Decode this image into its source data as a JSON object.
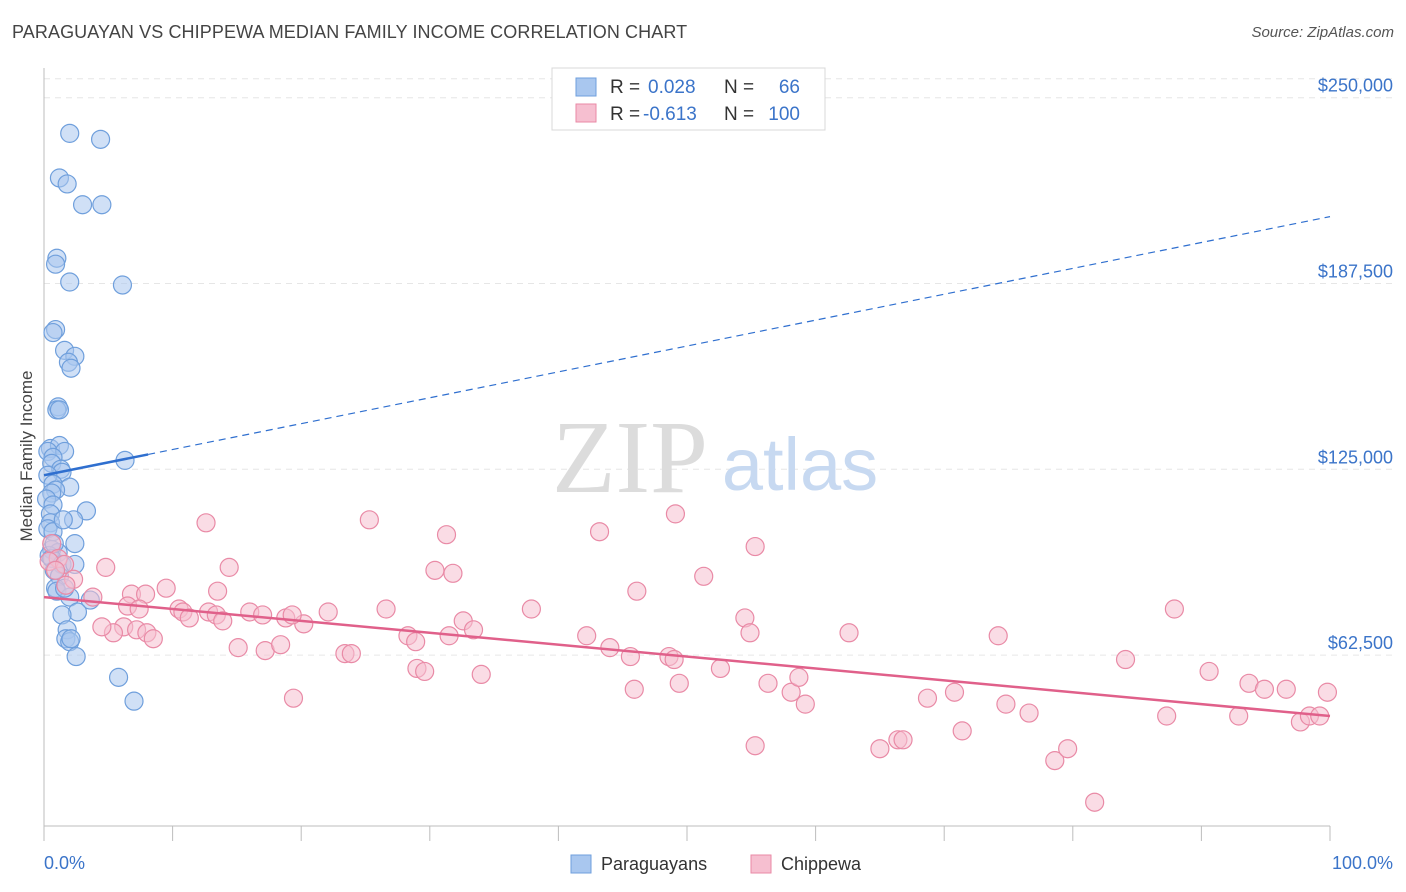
{
  "header": {
    "title": "PARAGUAYAN VS CHIPPEWA MEDIAN FAMILY INCOME CORRELATION CHART",
    "source": "Source: ZipAtlas.com"
  },
  "colors": {
    "paraguayans": "#6f9fdc",
    "paraguayans_fill": "#a9c7ef",
    "chippewa": "#e98aa6",
    "chippewa_fill": "#f6bfd0",
    "blue_trend": "#2f6fcf",
    "pink_trend": "#e0608a",
    "axis_text": "#3b74c9"
  },
  "watermark": {
    "zip": "ZIP",
    "atlas": "atlas"
  },
  "chart_data": {
    "type": "scatter",
    "title": "PARAGUAYAN VS CHIPPEWA MEDIAN FAMILY INCOME CORRELATION CHART",
    "xlabel": "",
    "ylabel": "Median Family Income",
    "xlim": [
      0,
      100
    ],
    "ylim": [
      5000,
      260000
    ],
    "x_tick_labels": [
      "0.0%",
      "100.0%"
    ],
    "y_ticks": [
      62500,
      125000,
      187500,
      250000
    ],
    "y_tick_labels": [
      "$62,500",
      "$125,000",
      "$187,500",
      "$250,000"
    ],
    "grid": true,
    "legend_position": "top-center",
    "stats": [
      {
        "r_label": "R =",
        "r_value": "0.028",
        "n_label": "N =",
        "n_value": "66"
      },
      {
        "r_label": "R =",
        "r_value": "-0.613",
        "n_label": "N =",
        "n_value": "100"
      }
    ],
    "series": [
      {
        "name": "Paraguayans",
        "trend": {
          "x0": 0,
          "y0": 123000,
          "x1": 8.1,
          "y1": 130000,
          "dashed_to_x": 100,
          "dashed_to_y": 210000
        },
        "points": [
          [
            2.0,
            238000
          ],
          [
            4.4,
            236000
          ],
          [
            1.2,
            223000
          ],
          [
            1.8,
            221000
          ],
          [
            3.0,
            214000
          ],
          [
            4.5,
            214000
          ],
          [
            1.0,
            196000
          ],
          [
            0.9,
            194000
          ],
          [
            2.0,
            188000
          ],
          [
            6.1,
            187000
          ],
          [
            0.9,
            172000
          ],
          [
            0.7,
            171000
          ],
          [
            1.6,
            165000
          ],
          [
            2.4,
            163000
          ],
          [
            1.9,
            161000
          ],
          [
            2.1,
            159000
          ],
          [
            1.1,
            146000
          ],
          [
            1.0,
            145000
          ],
          [
            1.2,
            145000
          ],
          [
            0.5,
            132000
          ],
          [
            1.2,
            133000
          ],
          [
            0.3,
            131000
          ],
          [
            1.6,
            131000
          ],
          [
            0.7,
            129000
          ],
          [
            6.3,
            128000
          ],
          [
            0.6,
            127000
          ],
          [
            1.3,
            125000
          ],
          [
            1.4,
            124000
          ],
          [
            0.3,
            123000
          ],
          [
            0.7,
            120000
          ],
          [
            2.0,
            119000
          ],
          [
            0.9,
            118000
          ],
          [
            0.6,
            117000
          ],
          [
            0.2,
            115000
          ],
          [
            0.7,
            113000
          ],
          [
            3.3,
            111000
          ],
          [
            0.5,
            110000
          ],
          [
            2.3,
            108000
          ],
          [
            0.5,
            107000
          ],
          [
            0.3,
            105000
          ],
          [
            0.7,
            104000
          ],
          [
            2.4,
            100000
          ],
          [
            0.6,
            98000
          ],
          [
            1.1,
            97000
          ],
          [
            0.4,
            96000
          ],
          [
            0.6,
            95000
          ],
          [
            1.4,
            93000
          ],
          [
            2.4,
            93000
          ],
          [
            0.8,
            91000
          ],
          [
            1.2,
            89000
          ],
          [
            0.9,
            85000
          ],
          [
            1.0,
            84000
          ],
          [
            2.0,
            82000
          ],
          [
            3.6,
            81000
          ],
          [
            2.6,
            77000
          ],
          [
            1.4,
            76000
          ],
          [
            1.8,
            71000
          ],
          [
            1.7,
            68000
          ],
          [
            2.0,
            67000
          ],
          [
            2.1,
            68000
          ],
          [
            2.5,
            62000
          ],
          [
            5.8,
            55000
          ],
          [
            7.0,
            47000
          ],
          [
            1.6,
            85000
          ],
          [
            0.8,
            100000
          ],
          [
            1.5,
            108000
          ]
        ]
      },
      {
        "name": "Chippewa",
        "trend": {
          "x0": 0,
          "y0": 82000,
          "x1": 100,
          "y1": 42000
        },
        "points": [
          [
            0.6,
            100000
          ],
          [
            1.1,
            95000
          ],
          [
            0.4,
            94000
          ],
          [
            1.6,
            93000
          ],
          [
            0.9,
            91000
          ],
          [
            2.3,
            88000
          ],
          [
            1.7,
            86000
          ],
          [
            3.8,
            82000
          ],
          [
            4.8,
            92000
          ],
          [
            6.8,
            83000
          ],
          [
            7.9,
            83000
          ],
          [
            9.5,
            85000
          ],
          [
            6.5,
            79000
          ],
          [
            7.4,
            78000
          ],
          [
            10.5,
            78000
          ],
          [
            10.8,
            77000
          ],
          [
            11.3,
            75000
          ],
          [
            12.8,
            77000
          ],
          [
            13.4,
            76000
          ],
          [
            13.9,
            74000
          ],
          [
            16.0,
            77000
          ],
          [
            17.0,
            76000
          ],
          [
            18.8,
            75000
          ],
          [
            20.2,
            73000
          ],
          [
            19.3,
            76000
          ],
          [
            6.2,
            72000
          ],
          [
            7.2,
            71000
          ],
          [
            8.0,
            70000
          ],
          [
            8.5,
            68000
          ],
          [
            5.4,
            70000
          ],
          [
            4.5,
            72000
          ],
          [
            12.6,
            107000
          ],
          [
            13.5,
            84000
          ],
          [
            14.4,
            92000
          ],
          [
            15.1,
            65000
          ],
          [
            17.2,
            64000
          ],
          [
            18.4,
            66000
          ],
          [
            22.1,
            77000
          ],
          [
            23.4,
            63000
          ],
          [
            23.9,
            63000
          ],
          [
            25.3,
            108000
          ],
          [
            26.6,
            78000
          ],
          [
            28.3,
            69000
          ],
          [
            28.9,
            67000
          ],
          [
            29.0,
            58000
          ],
          [
            29.6,
            57000
          ],
          [
            30.4,
            91000
          ],
          [
            31.3,
            103000
          ],
          [
            31.5,
            69000
          ],
          [
            31.8,
            90000
          ],
          [
            32.6,
            74000
          ],
          [
            33.4,
            71000
          ],
          [
            34.0,
            56000
          ],
          [
            37.9,
            78000
          ],
          [
            42.2,
            69000
          ],
          [
            43.2,
            104000
          ],
          [
            44.0,
            65000
          ],
          [
            45.6,
            62000
          ],
          [
            45.9,
            51000
          ],
          [
            46.1,
            84000
          ],
          [
            48.6,
            62000
          ],
          [
            49.0,
            61000
          ],
          [
            49.4,
            53000
          ],
          [
            49.1,
            110000
          ],
          [
            51.3,
            89000
          ],
          [
            52.6,
            58000
          ],
          [
            54.5,
            75000
          ],
          [
            54.9,
            70000
          ],
          [
            55.3,
            99000
          ],
          [
            55.3,
            32000
          ],
          [
            56.3,
            53000
          ],
          [
            58.1,
            50000
          ],
          [
            59.2,
            46000
          ],
          [
            58.7,
            55000
          ],
          [
            62.6,
            70000
          ],
          [
            65.0,
            31000
          ],
          [
            66.4,
            34000
          ],
          [
            66.8,
            34000
          ],
          [
            68.7,
            48000
          ],
          [
            70.8,
            50000
          ],
          [
            71.4,
            37000
          ],
          [
            74.2,
            69000
          ],
          [
            74.8,
            46000
          ],
          [
            76.6,
            43000
          ],
          [
            78.6,
            27000
          ],
          [
            79.6,
            31000
          ],
          [
            81.7,
            13000
          ],
          [
            84.1,
            61000
          ],
          [
            87.3,
            42000
          ],
          [
            87.9,
            78000
          ],
          [
            90.6,
            57000
          ],
          [
            92.9,
            42000
          ],
          [
            93.7,
            53000
          ],
          [
            94.9,
            51000
          ],
          [
            96.6,
            51000
          ],
          [
            97.7,
            40000
          ],
          [
            98.4,
            42000
          ],
          [
            99.2,
            42000
          ],
          [
            99.8,
            50000
          ],
          [
            19.4,
            48000
          ]
        ]
      }
    ]
  }
}
